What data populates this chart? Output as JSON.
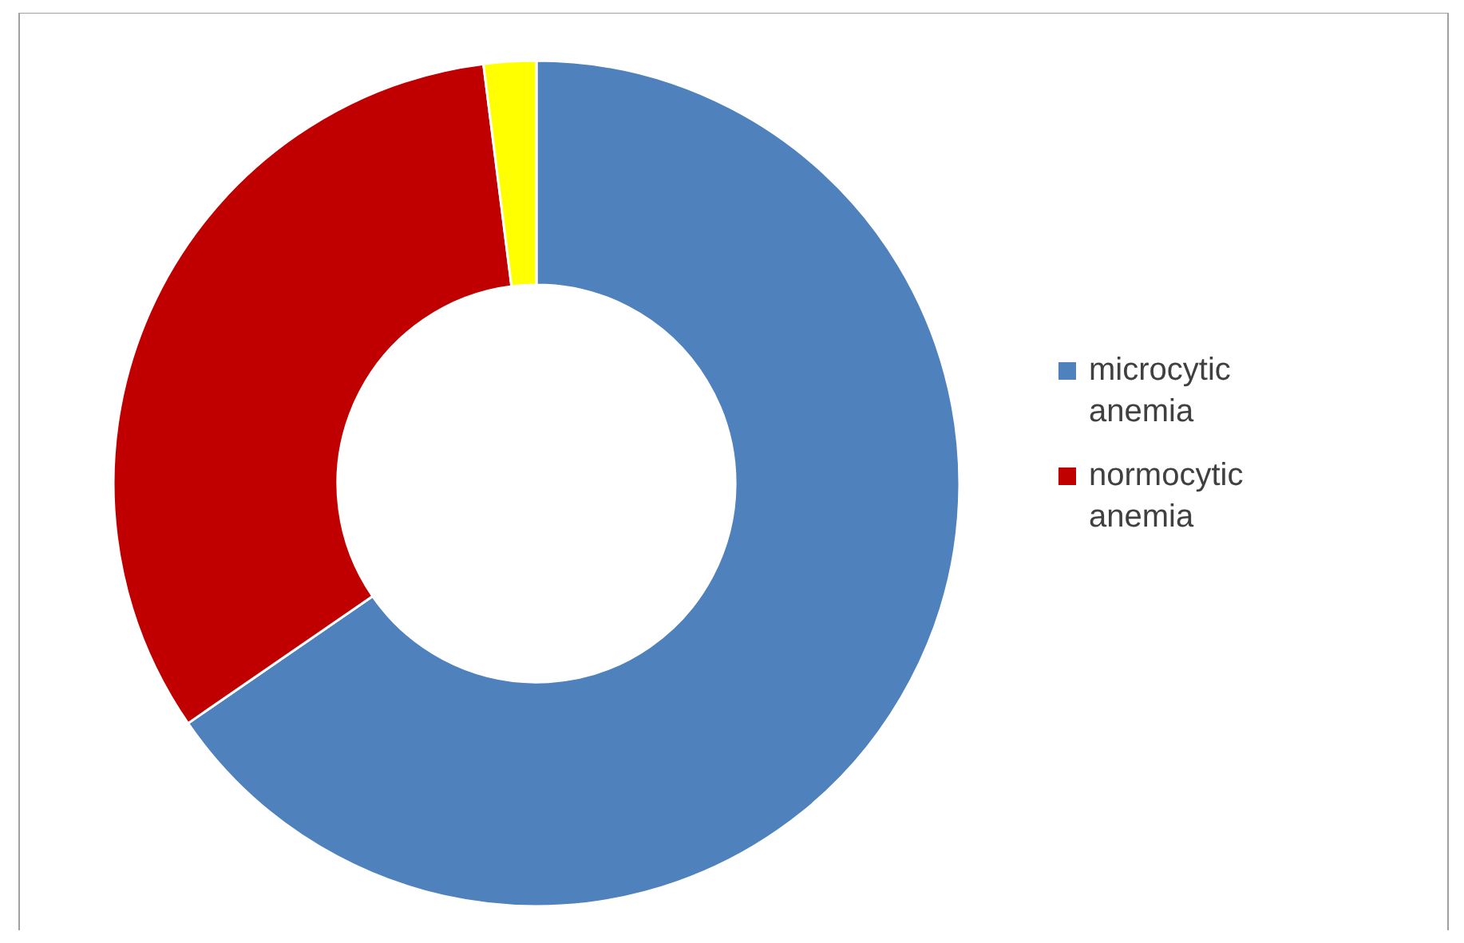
{
  "chart_data": {
    "type": "donut",
    "categories": [
      "microcytic anemia",
      "normocytic anemia",
      null
    ],
    "values": [
      65.4,
      32.6,
      2.0
    ],
    "colors": [
      "#4f81bd",
      "#c00000",
      "#ffff00"
    ],
    "legend": "right"
  }
}
